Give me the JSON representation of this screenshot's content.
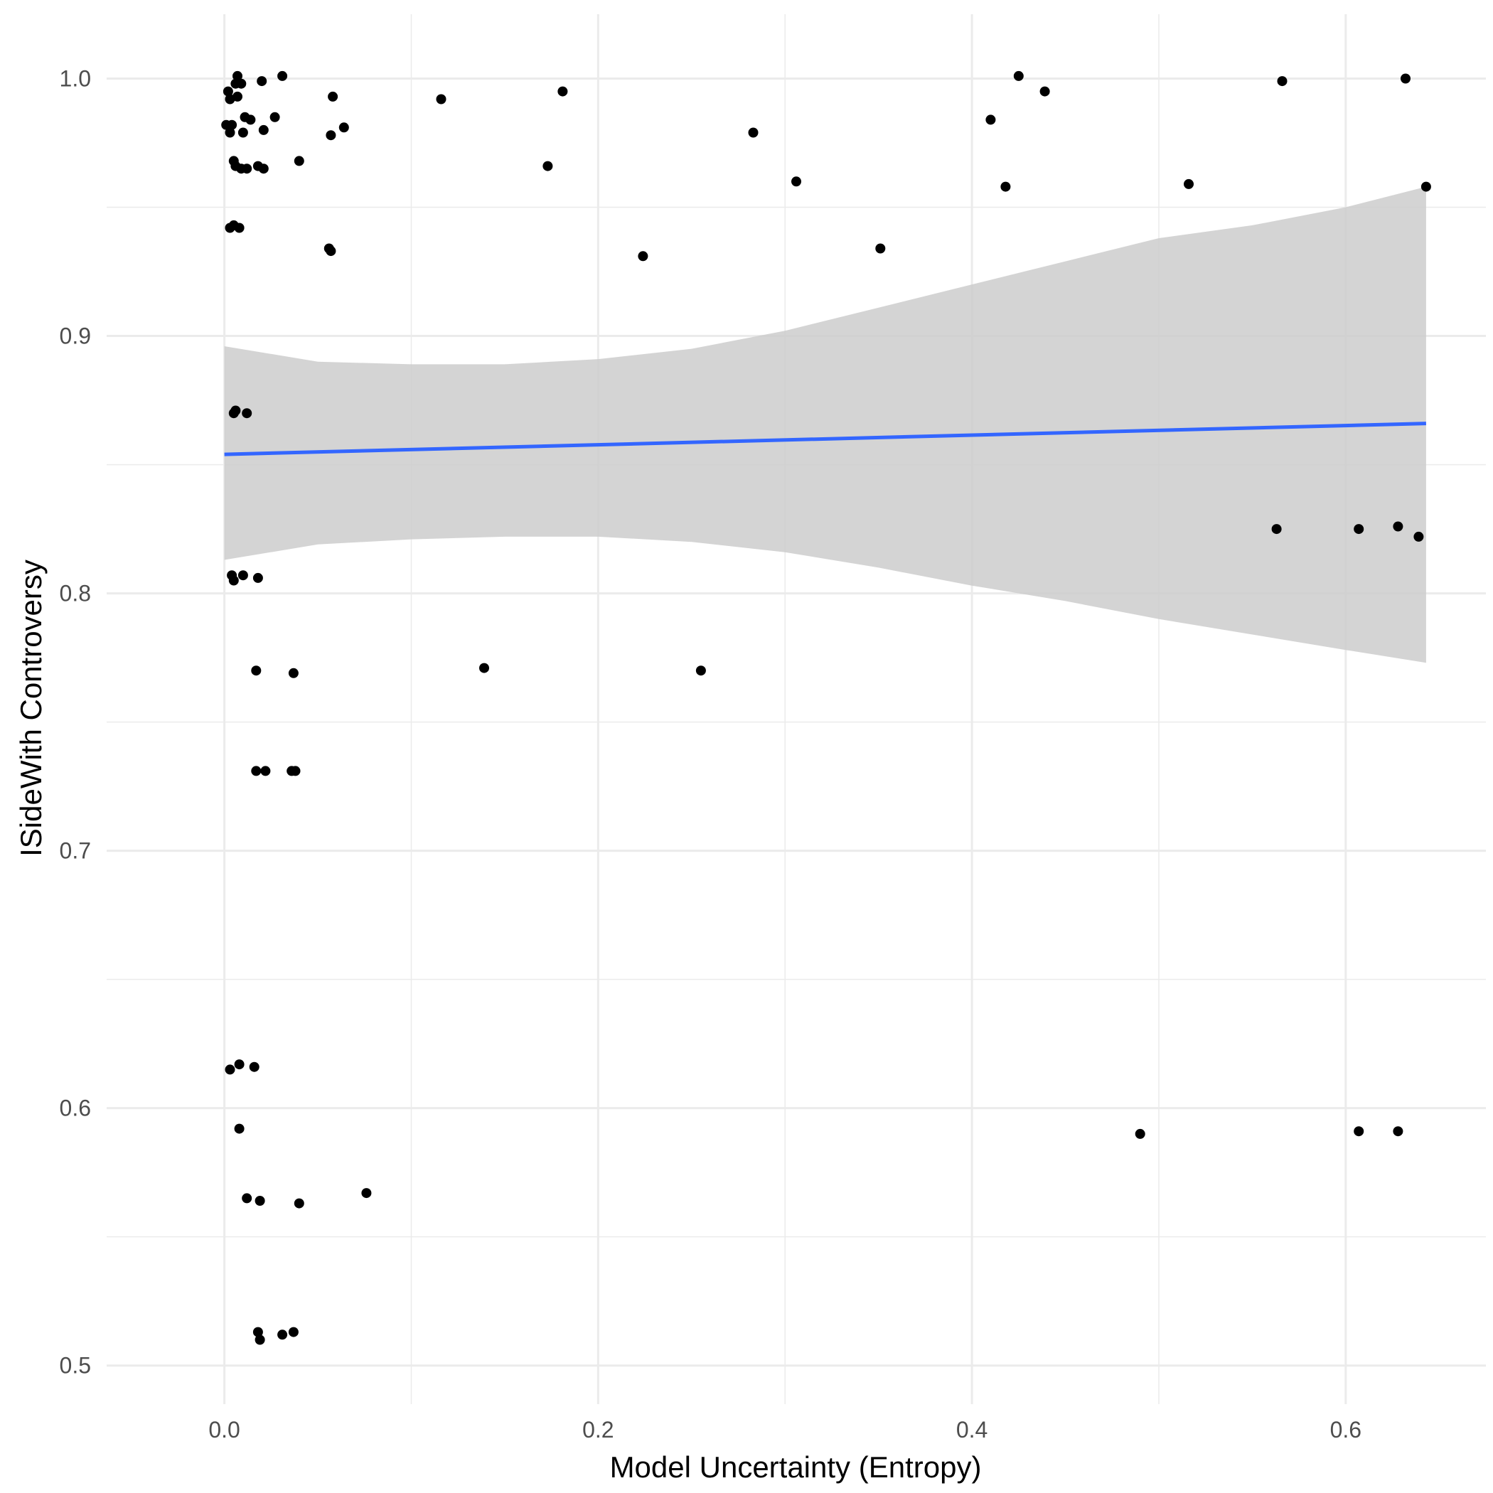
{
  "chart_data": {
    "type": "scatter",
    "title": "",
    "xlabel": "Model Uncertainty (Entropy)",
    "ylabel": "ISideWith Controversy",
    "xlim": [
      -0.063,
      0.675
    ],
    "ylim": [
      0.485,
      1.025
    ],
    "x_ticks": [
      0.0,
      0.2,
      0.4,
      0.6
    ],
    "x_tick_labels": [
      "0.0",
      "0.2",
      "0.4",
      "0.6"
    ],
    "y_ticks": [
      0.5,
      0.6,
      0.7,
      0.8,
      0.9,
      1.0
    ],
    "y_tick_labels": [
      "0.5",
      "0.6",
      "0.7",
      "0.8",
      "0.9",
      "1.0"
    ],
    "grid": true,
    "legend": "none",
    "colors": {
      "points": "#000000",
      "trend_line": "#3366ff",
      "confidence_band": "#cccccc",
      "grid": "#ebebeb"
    },
    "points": [
      {
        "x": 0.002,
        "y": 0.995
      },
      {
        "x": 0.003,
        "y": 0.992
      },
      {
        "x": 0.006,
        "y": 0.998
      },
      {
        "x": 0.007,
        "y": 1.001
      },
      {
        "x": 0.009,
        "y": 0.998
      },
      {
        "x": 0.007,
        "y": 0.993
      },
      {
        "x": 0.02,
        "y": 0.999
      },
      {
        "x": 0.031,
        "y": 1.001
      },
      {
        "x": 0.001,
        "y": 0.982
      },
      {
        "x": 0.003,
        "y": 0.979
      },
      {
        "x": 0.004,
        "y": 0.982
      },
      {
        "x": 0.011,
        "y": 0.985
      },
      {
        "x": 0.014,
        "y": 0.984
      },
      {
        "x": 0.01,
        "y": 0.979
      },
      {
        "x": 0.021,
        "y": 0.98
      },
      {
        "x": 0.027,
        "y": 0.985
      },
      {
        "x": 0.005,
        "y": 0.968
      },
      {
        "x": 0.006,
        "y": 0.966
      },
      {
        "x": 0.009,
        "y": 0.965
      },
      {
        "x": 0.012,
        "y": 0.965
      },
      {
        "x": 0.018,
        "y": 0.966
      },
      {
        "x": 0.021,
        "y": 0.965
      },
      {
        "x": 0.04,
        "y": 0.968
      },
      {
        "x": 0.057,
        "y": 0.978
      },
      {
        "x": 0.058,
        "y": 0.993
      },
      {
        "x": 0.064,
        "y": 0.981
      },
      {
        "x": 0.003,
        "y": 0.942
      },
      {
        "x": 0.005,
        "y": 0.943
      },
      {
        "x": 0.008,
        "y": 0.942
      },
      {
        "x": 0.056,
        "y": 0.934
      },
      {
        "x": 0.057,
        "y": 0.933
      },
      {
        "x": 0.116,
        "y": 0.992
      },
      {
        "x": 0.181,
        "y": 0.995
      },
      {
        "x": 0.173,
        "y": 0.966
      },
      {
        "x": 0.224,
        "y": 0.931
      },
      {
        "x": 0.283,
        "y": 0.979
      },
      {
        "x": 0.306,
        "y": 0.96
      },
      {
        "x": 0.351,
        "y": 0.934
      },
      {
        "x": 0.41,
        "y": 0.984
      },
      {
        "x": 0.425,
        "y": 1.001
      },
      {
        "x": 0.439,
        "y": 0.995
      },
      {
        "x": 0.418,
        "y": 0.958
      },
      {
        "x": 0.516,
        "y": 0.959
      },
      {
        "x": 0.566,
        "y": 0.999
      },
      {
        "x": 0.632,
        "y": 1.0
      },
      {
        "x": 0.643,
        "y": 0.958
      },
      {
        "x": 0.005,
        "y": 0.87
      },
      {
        "x": 0.006,
        "y": 0.871
      },
      {
        "x": 0.012,
        "y": 0.87
      },
      {
        "x": 0.004,
        "y": 0.807
      },
      {
        "x": 0.005,
        "y": 0.805
      },
      {
        "x": 0.01,
        "y": 0.807
      },
      {
        "x": 0.018,
        "y": 0.806
      },
      {
        "x": 0.017,
        "y": 0.77
      },
      {
        "x": 0.037,
        "y": 0.769
      },
      {
        "x": 0.139,
        "y": 0.771
      },
      {
        "x": 0.255,
        "y": 0.77
      },
      {
        "x": 0.017,
        "y": 0.731
      },
      {
        "x": 0.022,
        "y": 0.731
      },
      {
        "x": 0.036,
        "y": 0.731
      },
      {
        "x": 0.038,
        "y": 0.731
      },
      {
        "x": 0.563,
        "y": 0.825
      },
      {
        "x": 0.607,
        "y": 0.825
      },
      {
        "x": 0.628,
        "y": 0.826
      },
      {
        "x": 0.639,
        "y": 0.822
      },
      {
        "x": 0.003,
        "y": 0.615
      },
      {
        "x": 0.008,
        "y": 0.617
      },
      {
        "x": 0.016,
        "y": 0.616
      },
      {
        "x": 0.008,
        "y": 0.592
      },
      {
        "x": 0.012,
        "y": 0.565
      },
      {
        "x": 0.019,
        "y": 0.564
      },
      {
        "x": 0.04,
        "y": 0.563
      },
      {
        "x": 0.076,
        "y": 0.567
      },
      {
        "x": 0.49,
        "y": 0.59
      },
      {
        "x": 0.607,
        "y": 0.591
      },
      {
        "x": 0.628,
        "y": 0.591
      },
      {
        "x": 0.018,
        "y": 0.513
      },
      {
        "x": 0.019,
        "y": 0.51
      },
      {
        "x": 0.031,
        "y": 0.512
      },
      {
        "x": 0.037,
        "y": 0.513
      }
    ],
    "trend_line": {
      "x": [
        0.0,
        0.643
      ],
      "y": [
        0.854,
        0.866
      ]
    },
    "confidence_band": {
      "x": [
        0.0,
        0.05,
        0.1,
        0.15,
        0.2,
        0.25,
        0.3,
        0.35,
        0.4,
        0.45,
        0.5,
        0.55,
        0.6,
        0.643
      ],
      "upper": [
        0.896,
        0.89,
        0.889,
        0.889,
        0.891,
        0.895,
        0.902,
        0.911,
        0.92,
        0.929,
        0.938,
        0.943,
        0.95,
        0.958
      ],
      "lower": [
        0.813,
        0.819,
        0.821,
        0.822,
        0.822,
        0.82,
        0.816,
        0.81,
        0.803,
        0.797,
        0.79,
        0.784,
        0.778,
        0.773
      ]
    }
  }
}
